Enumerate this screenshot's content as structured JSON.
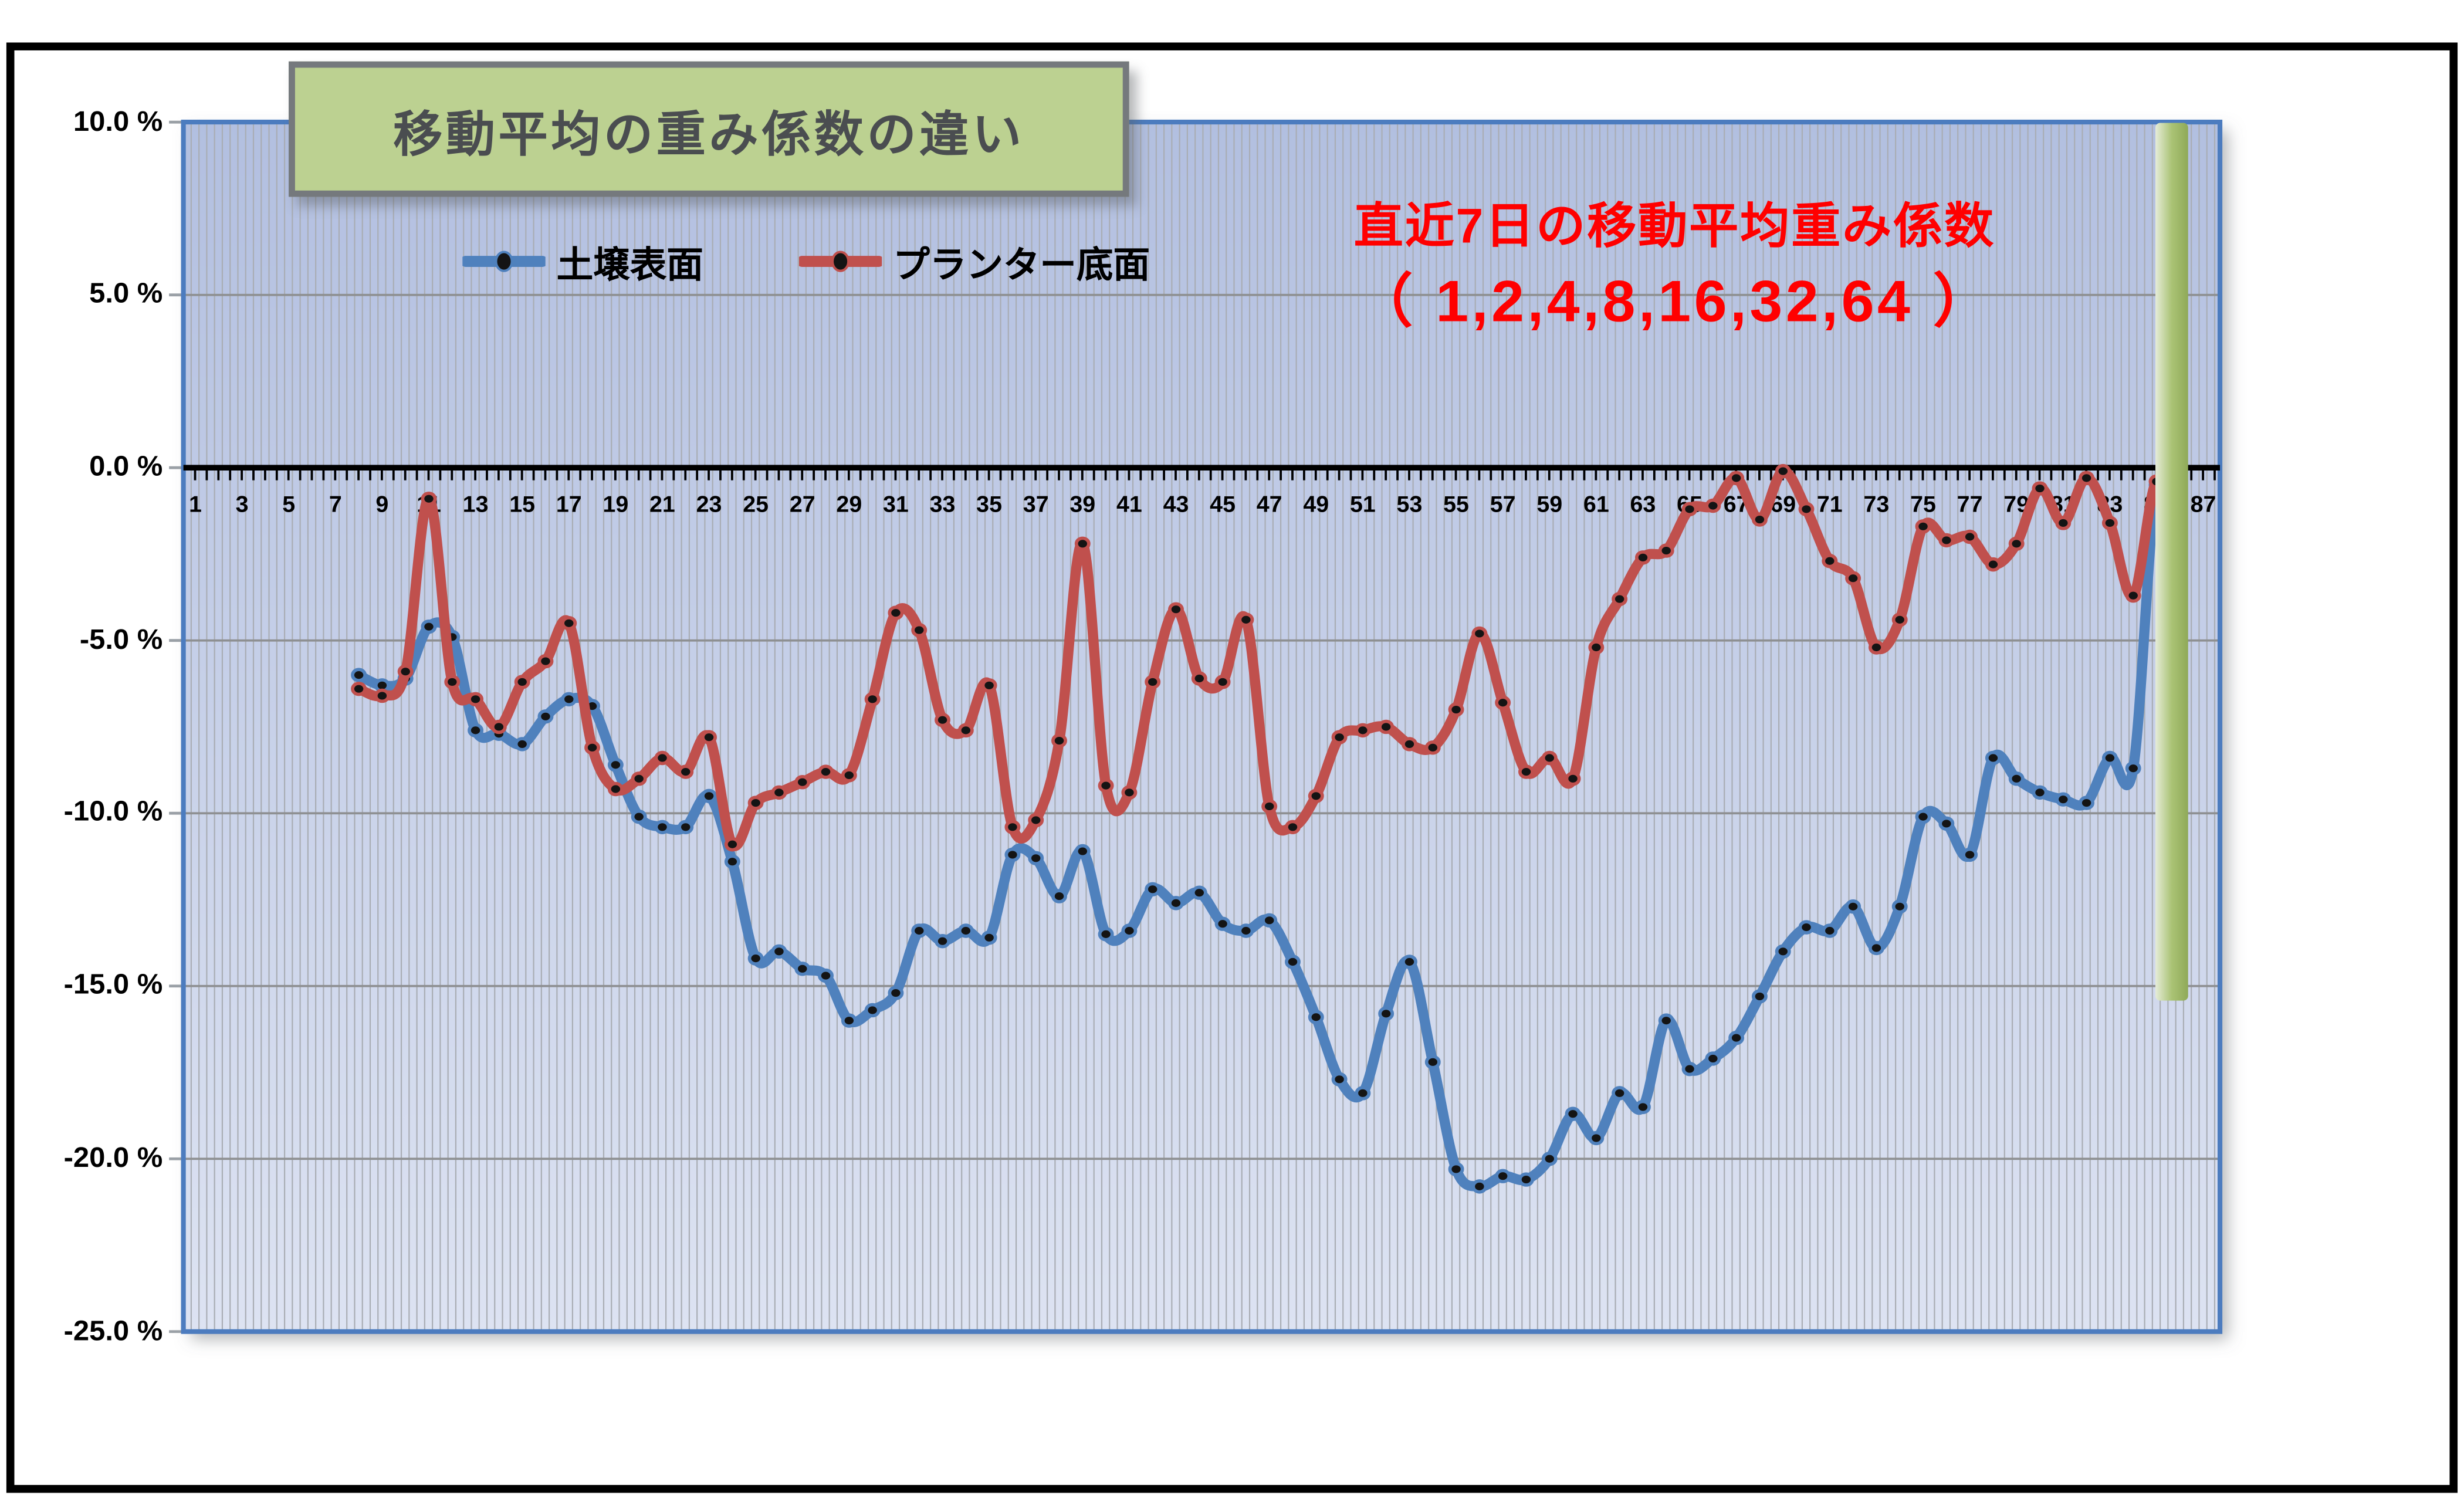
{
  "title": "移動平均の重み係数の違い",
  "legend": [
    {
      "label": "土壌表面",
      "color": "#4F81BD"
    },
    {
      "label": "プランター底面",
      "color": "#C0504D"
    }
  ],
  "annotation": {
    "line1": "直近7日の移動平均重み係数",
    "line2": "（ 1,2,4,8,16,32,64 ）",
    "color": "#FF0000"
  },
  "y_axis": {
    "tick_labels": [
      "10.0 %",
      "5.0 %",
      "0.0 %",
      "-5.0 %",
      "-10.0 %",
      "-15.0 %",
      "-20.0 %",
      "-25.0 %"
    ],
    "tick_values": [
      10,
      5,
      0,
      -5,
      -10,
      -15,
      -20,
      -25
    ]
  },
  "x_axis": {
    "tick_labels": [
      1,
      3,
      5,
      7,
      9,
      11,
      13,
      15,
      17,
      19,
      21,
      23,
      25,
      27,
      29,
      31,
      33,
      35,
      37,
      39,
      41,
      43,
      45,
      47,
      49,
      51,
      53,
      55,
      57,
      59,
      61,
      63,
      65,
      67,
      69,
      71,
      73,
      75,
      77,
      79,
      81,
      83,
      85,
      87
    ]
  },
  "chart_data": {
    "type": "line",
    "title": "移動平均の重み係数の違い",
    "xlabel": "",
    "ylabel": "",
    "xlim": [
      0.5,
      88
    ],
    "ylim": [
      -25,
      10
    ],
    "grid": true,
    "legend_position": "top-inside",
    "x_start": 8,
    "series": [
      {
        "name": "土壌表面",
        "color": "#4F81BD",
        "values": [
          -6.0,
          -6.3,
          -6.1,
          -4.6,
          -4.9,
          -7.6,
          -7.7,
          -8.0,
          -7.2,
          -6.7,
          -6.9,
          -8.6,
          -10.1,
          -10.4,
          -10.4,
          -9.5,
          -11.4,
          -14.2,
          -14.0,
          -14.5,
          -14.7,
          -16.0,
          -15.7,
          -15.2,
          -13.4,
          -13.7,
          -13.4,
          -13.6,
          -11.2,
          -11.3,
          -12.4,
          -11.1,
          -13.5,
          -13.4,
          -12.2,
          -12.6,
          -12.3,
          -13.2,
          -13.4,
          -13.1,
          -14.3,
          -15.9,
          -17.7,
          -18.1,
          -15.8,
          -14.3,
          -17.2,
          -20.3,
          -20.8,
          -20.5,
          -20.6,
          -20.0,
          -18.7,
          -19.4,
          -18.1,
          -18.5,
          -16.0,
          -17.4,
          -17.1,
          -16.5,
          -15.3,
          -14.0,
          -13.3,
          -13.4,
          -12.7,
          -13.9,
          -12.7,
          -10.1,
          -10.3,
          -11.2,
          -8.4,
          -9.0,
          -9.4,
          -9.6,
          -9.7,
          -8.4,
          -8.7,
          -0.5,
          -2.3
        ]
      },
      {
        "name": "プランター底面",
        "color": "#C0504D",
        "values": [
          -6.4,
          -6.6,
          -5.9,
          -0.9,
          -6.2,
          -6.7,
          -7.5,
          -6.2,
          -5.6,
          -4.5,
          -8.1,
          -9.3,
          -9.0,
          -8.4,
          -8.8,
          -7.8,
          -10.9,
          -9.7,
          -9.4,
          -9.1,
          -8.8,
          -8.9,
          -6.7,
          -4.2,
          -4.7,
          -7.3,
          -7.6,
          -6.3,
          -10.4,
          -10.2,
          -7.9,
          -2.2,
          -9.2,
          -9.4,
          -6.2,
          -4.1,
          -6.1,
          -6.2,
          -4.4,
          -9.8,
          -10.4,
          -9.5,
          -7.8,
          -7.6,
          -7.5,
          -8.0,
          -8.1,
          -7.0,
          -4.8,
          -6.8,
          -8.8,
          -8.4,
          -9.0,
          -5.2,
          -3.8,
          -2.6,
          -2.4,
          -1.2,
          -1.1,
          -0.3,
          -1.5,
          -0.1,
          -1.2,
          -2.7,
          -3.2,
          -5.2,
          -4.4,
          -1.7,
          -2.1,
          -2.0,
          -2.8,
          -2.2,
          -0.6,
          -1.6,
          -0.3,
          -1.6,
          -3.7,
          -0.4,
          -2.4
        ]
      }
    ],
    "marker": {
      "fill": "#141414",
      "shape": "ellipse"
    },
    "highlight_bar": {
      "x_from": 84.95,
      "x_to": 86.35,
      "v_top": 10,
      "v_bottom": -15.4,
      "color": "#8FA958"
    }
  },
  "colors": {
    "plot_bg_top": "#b2bfe0",
    "plot_bg_bottom": "#dde3f2",
    "minor_gridline": "#a9adb4",
    "gridline": "#8e9092",
    "axis": "#000000",
    "plot_border": "#4C7CBF",
    "title_box_fill": "#bcd191",
    "title_box_border": "#75797d",
    "annotation_red": "#FF0000",
    "frame": "#000000"
  }
}
